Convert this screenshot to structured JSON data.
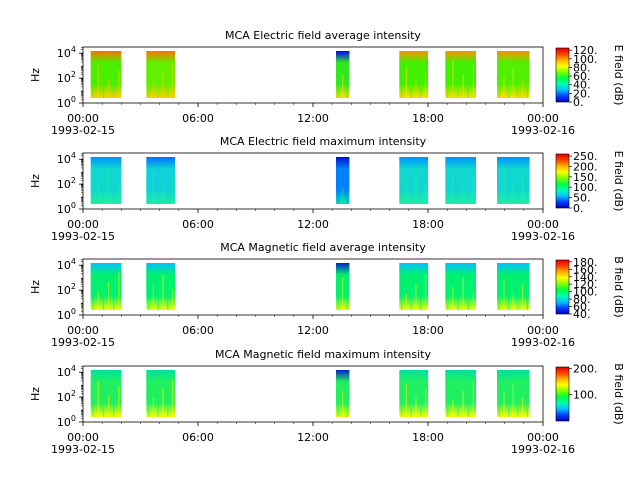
{
  "chart_data": [
    {
      "type": "heatmap",
      "title": "MCA  Electric field average intensity",
      "ylabel": "Hz",
      "y_ticks": [
        {
          "base": "10",
          "exp": "0"
        },
        {
          "base": "10",
          "exp": "2"
        },
        {
          "base": "10",
          "exp": "4"
        }
      ],
      "x_ticks": [
        "00:00",
        "06:00",
        "12:00",
        "18:00",
        "00:00"
      ],
      "x_dates": [
        "1993-02-15",
        "1993-02-16"
      ],
      "colorbar_label": "E field (dB)",
      "colorbar_ticks": [
        "120.",
        "100.",
        "80.",
        "60.",
        "40.",
        "20.",
        "0."
      ],
      "colorbar_range": [
        0,
        125
      ],
      "colormap": [
        "#0000c0",
        "#0040ff",
        "#00c0ff",
        "#00ffb0",
        "#00ff40",
        "#80ff00",
        "#ffff00",
        "#ffb000",
        "#ff4000",
        "#e00000"
      ],
      "segments": [
        {
          "start_h": 0.4,
          "end_h": 2.0,
          "fill": "#48f000",
          "accent": "#ffd000",
          "hi": "#ff7000"
        },
        {
          "start_h": 3.3,
          "end_h": 4.8,
          "fill": "#60f000",
          "accent": "#ffd000",
          "hi": "#ff7000"
        },
        {
          "start_h": 13.2,
          "end_h": 13.9,
          "fill": "#30e820",
          "accent": "#ffe000",
          "hi": "#0000ff"
        },
        {
          "start_h": 16.5,
          "end_h": 18.0,
          "fill": "#40f000",
          "accent": "#ffe000",
          "hi": "#ff9000"
        },
        {
          "start_h": 18.9,
          "end_h": 20.5,
          "fill": "#40f000",
          "accent": "#ffe000",
          "hi": "#ff9000"
        },
        {
          "start_h": 21.6,
          "end_h": 23.3,
          "fill": "#50f000",
          "accent": "#ffe000",
          "hi": "#ff9000"
        }
      ]
    },
    {
      "type": "heatmap",
      "title": "MCA  Electric field maximum intensity",
      "ylabel": "Hz",
      "y_ticks": [
        {
          "base": "10",
          "exp": "0"
        },
        {
          "base": "10",
          "exp": "2"
        },
        {
          "base": "10",
          "exp": "4"
        }
      ],
      "x_ticks": [
        "00:00",
        "06:00",
        "12:00",
        "18:00",
        "00:00"
      ],
      "x_dates": [
        "1993-02-15",
        "1993-02-16"
      ],
      "colorbar_label": "E field (dB)",
      "colorbar_ticks": [
        "250.",
        "200.",
        "150.",
        "100.",
        "50.",
        "0."
      ],
      "colorbar_range": [
        0,
        260
      ],
      "colormap": [
        "#0000c0",
        "#0040ff",
        "#00c0ff",
        "#00ffb0",
        "#00ff40",
        "#80ff00",
        "#ffff00",
        "#ffb000",
        "#ff4000",
        "#e00000"
      ],
      "segments": [
        {
          "start_h": 0.4,
          "end_h": 2.0,
          "fill": "#10d8d0",
          "accent": "#20f0a0",
          "hi": "#0090ff"
        },
        {
          "start_h": 3.3,
          "end_h": 4.8,
          "fill": "#10d0d8",
          "accent": "#20f0a0",
          "hi": "#0070ff"
        },
        {
          "start_h": 13.2,
          "end_h": 13.9,
          "fill": "#0080ff",
          "accent": "#00f0a0",
          "hi": "#0010d0"
        },
        {
          "start_h": 16.5,
          "end_h": 18.0,
          "fill": "#10d8d0",
          "accent": "#20f0a0",
          "hi": "#0090ff"
        },
        {
          "start_h": 18.9,
          "end_h": 20.5,
          "fill": "#10d8d0",
          "accent": "#20f0a0",
          "hi": "#0090ff"
        },
        {
          "start_h": 21.6,
          "end_h": 23.3,
          "fill": "#10d8d0",
          "accent": "#20f0a0",
          "hi": "#0090ff"
        }
      ]
    },
    {
      "type": "heatmap",
      "title": "MCA  Magnetic field average intensity",
      "ylabel": "Hz",
      "y_ticks": [
        {
          "base": "10",
          "exp": "0"
        },
        {
          "base": "10",
          "exp": "2"
        },
        {
          "base": "10",
          "exp": "4"
        }
      ],
      "x_ticks": [
        "00:00",
        "06:00",
        "12:00",
        "18:00",
        "00:00"
      ],
      "x_dates": [
        "1993-02-15",
        "1993-02-16"
      ],
      "colorbar_label": "B field (dB)",
      "colorbar_ticks": [
        "180.",
        "160.",
        "140.",
        "120.",
        "100.",
        "80.",
        "60.",
        "40."
      ],
      "colorbar_range": [
        40,
        185
      ],
      "colormap": [
        "#0000c0",
        "#0040ff",
        "#00c0ff",
        "#00ffb0",
        "#00ff40",
        "#80ff00",
        "#ffff00",
        "#ffb000",
        "#ff4000",
        "#e00000"
      ],
      "segments": [
        {
          "start_h": 0.4,
          "end_h": 2.0,
          "fill": "#00f070",
          "accent": "#f0ff00",
          "hi": "#00c0ff"
        },
        {
          "start_h": 3.3,
          "end_h": 4.8,
          "fill": "#00f070",
          "accent": "#f0ff00",
          "hi": "#00c0ff"
        },
        {
          "start_h": 13.2,
          "end_h": 13.9,
          "fill": "#00f070",
          "accent": "#f0ff00",
          "hi": "#0020d0"
        },
        {
          "start_h": 16.5,
          "end_h": 18.0,
          "fill": "#00f070",
          "accent": "#f0ff00",
          "hi": "#00c0ff"
        },
        {
          "start_h": 18.9,
          "end_h": 20.5,
          "fill": "#00f070",
          "accent": "#f0ff00",
          "hi": "#00c0ff"
        },
        {
          "start_h": 21.6,
          "end_h": 23.3,
          "fill": "#00f070",
          "accent": "#f0ff00",
          "hi": "#00c0ff"
        }
      ]
    },
    {
      "type": "heatmap",
      "title": "MCA  Magnetic field maximum intensity",
      "ylabel": "Hz",
      "y_ticks": [
        {
          "base": "10",
          "exp": "0"
        },
        {
          "base": "10",
          "exp": "2"
        },
        {
          "base": "10",
          "exp": "4"
        }
      ],
      "x_ticks": [
        "00:00",
        "06:00",
        "12:00",
        "18:00",
        "00:00"
      ],
      "x_dates": [
        "1993-02-15",
        "1993-02-16"
      ],
      "colorbar_label": "B field (dB)",
      "colorbar_ticks": [
        "200.",
        "100."
      ],
      "colorbar_range": [
        0,
        205
      ],
      "colormap": [
        "#0000c0",
        "#0040ff",
        "#00c0ff",
        "#00ffb0",
        "#00ff40",
        "#80ff00",
        "#ffff00",
        "#ffb000",
        "#ff4000",
        "#e00000"
      ],
      "segments": [
        {
          "start_h": 0.4,
          "end_h": 2.0,
          "fill": "#20f060",
          "accent": "#ffff00",
          "hi": "#00e0a0"
        },
        {
          "start_h": 3.3,
          "end_h": 4.8,
          "fill": "#20f060",
          "accent": "#ffff00",
          "hi": "#00e0a0"
        },
        {
          "start_h": 13.2,
          "end_h": 13.9,
          "fill": "#20f060",
          "accent": "#f0ff00",
          "hi": "#0020d0"
        },
        {
          "start_h": 16.5,
          "end_h": 18.0,
          "fill": "#20f060",
          "accent": "#ffff00",
          "hi": "#00e0a0"
        },
        {
          "start_h": 18.9,
          "end_h": 20.5,
          "fill": "#20f060",
          "accent": "#ffff00",
          "hi": "#00e0a0"
        },
        {
          "start_h": 21.6,
          "end_h": 23.3,
          "fill": "#20f060",
          "accent": "#ffff00",
          "hi": "#00e0a0"
        }
      ]
    }
  ]
}
